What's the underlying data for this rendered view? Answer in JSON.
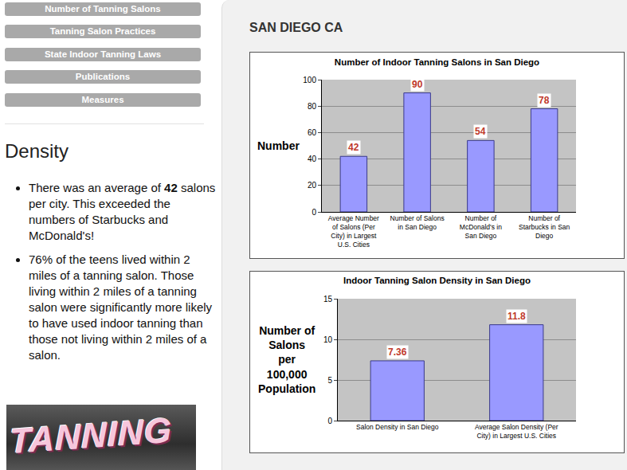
{
  "page": {
    "nav": [
      "Number of Tanning Salons",
      "Tanning Salon Practices",
      "State Indoor Tanning Laws",
      "Publications",
      "Measures"
    ],
    "density": {
      "heading": "Density",
      "bullets": [
        [
          {
            "text": "There was an average of ",
            "bold": false
          },
          {
            "text": "42",
            "bold": true
          },
          {
            "text": " salons per city. This exceeded the numbers of Starbucks and McDonald's!",
            "bold": false
          }
        ],
        [
          {
            "text": "76% of the teens lived within 2 miles of a tanning salon. Those living within 2 miles of a tanning salon were significantly more likely to have used indoor tanning than those not living within 2 miles of a salon.",
            "bold": false
          }
        ]
      ]
    },
    "image_text": "TANNING",
    "heading": "SAN DIEGO CA"
  },
  "chart_data": [
    {
      "type": "bar",
      "title": "Number of Indoor Tanning Salons in San Diego",
      "ylabel": "Number",
      "categories": [
        "Average Number of Salons (Per City) in Largest U.S. Cities",
        "Number of Salons in San Diego",
        "Number of McDonald's in San Diego",
        "Number of Starbucks in San Diego"
      ],
      "values": [
        42,
        90,
        54,
        78
      ],
      "color": "#9999ff",
      "ylim": [
        0,
        100
      ],
      "yticks": [
        0,
        20,
        40,
        60,
        80,
        100
      ],
      "grid": true,
      "data_labels": true
    },
    {
      "type": "bar",
      "title": "Indoor Tanning Salon Density in San Diego",
      "ylabel": "Number of Salons per 100,000 Population",
      "categories": [
        "Salon Density in San Diego",
        "Average Salon Density (Per City) in Largest U.S. Cities"
      ],
      "values": [
        7.36,
        11.8
      ],
      "color": "#9999ff",
      "ylim": [
        0,
        15
      ],
      "yticks": [
        0,
        5,
        10,
        15
      ],
      "grid": true,
      "data_labels": true
    }
  ]
}
